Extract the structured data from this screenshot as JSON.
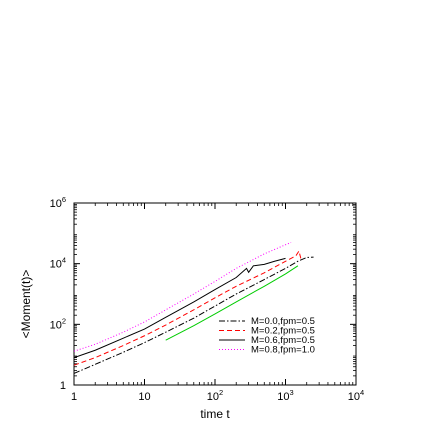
{
  "chart_data": {
    "type": "line",
    "title": "",
    "xlabel": "time t",
    "ylabel": "<Moment(t)>",
    "x_scale": "log",
    "y_scale": "log",
    "xlim": [
      1,
      10000
    ],
    "ylim": [
      1,
      1000000
    ],
    "x_ticks": [
      {
        "value": 1,
        "base": "1",
        "exp": ""
      },
      {
        "value": 10,
        "base": "10",
        "exp": ""
      },
      {
        "value": 100,
        "base": "10",
        "exp": "2"
      },
      {
        "value": 1000,
        "base": "10",
        "exp": "3"
      },
      {
        "value": 10000,
        "base": "10",
        "exp": "4"
      }
    ],
    "y_ticks": [
      {
        "value": 1,
        "base": "1",
        "exp": ""
      },
      {
        "value": 100,
        "base": "10",
        "exp": "2"
      },
      {
        "value": 10000,
        "base": "10",
        "exp": "4"
      },
      {
        "value": 1000000,
        "base": "10",
        "exp": "6"
      }
    ],
    "legend_position": "bottom-right",
    "grid": false,
    "series": [
      {
        "name": "M=0.0,fpm=0.5",
        "color": "#000000",
        "dash": "dashdot",
        "points": [
          [
            1,
            2.4
          ],
          [
            2,
            4.8
          ],
          [
            5,
            12
          ],
          [
            10,
            25
          ],
          [
            20,
            55
          ],
          [
            50,
            160
          ],
          [
            100,
            400
          ],
          [
            200,
            1000
          ],
          [
            500,
            3000
          ],
          [
            1000,
            7000
          ],
          [
            1500,
            12000
          ],
          [
            2000,
            16000
          ],
          [
            2500,
            16500
          ]
        ]
      },
      {
        "name": "M=0.2,fpm=0.5",
        "color": "#ff0000",
        "dash": "dashed",
        "points": [
          [
            1,
            4.5
          ],
          [
            2,
            8
          ],
          [
            5,
            20
          ],
          [
            10,
            42
          ],
          [
            20,
            95
          ],
          [
            50,
            300
          ],
          [
            100,
            750
          ],
          [
            200,
            1800
          ],
          [
            500,
            5000
          ],
          [
            1000,
            12000
          ],
          [
            1400,
            18000
          ],
          [
            1550,
            26000
          ],
          [
            1650,
            15000
          ]
        ]
      },
      {
        "name": "M=0.6,fpm=0.5",
        "color": "#000000",
        "dash": "solid",
        "points": [
          [
            1,
            8
          ],
          [
            2,
            14
          ],
          [
            5,
            35
          ],
          [
            10,
            70
          ],
          [
            20,
            170
          ],
          [
            50,
            550
          ],
          [
            100,
            1400
          ],
          [
            200,
            3500
          ],
          [
            280,
            7000
          ],
          [
            300,
            5200
          ],
          [
            350,
            8500
          ],
          [
            500,
            9500
          ],
          [
            700,
            12000
          ],
          [
            1000,
            15000
          ]
        ]
      },
      {
        "name": "M=0.8,fpm=1.0",
        "color": "#ff00ff",
        "dash": "dotted",
        "points": [
          [
            1,
            13
          ],
          [
            2,
            22
          ],
          [
            5,
            55
          ],
          [
            10,
            120
          ],
          [
            20,
            300
          ],
          [
            50,
            1000
          ],
          [
            100,
            2600
          ],
          [
            200,
            7000
          ],
          [
            500,
            21000
          ],
          [
            1000,
            42000
          ],
          [
            1200,
            50000
          ]
        ]
      },
      {
        "name": "",
        "color": "#00cc00",
        "dash": "solid",
        "points": [
          [
            20,
            30
          ],
          [
            50,
            90
          ],
          [
            100,
            220
          ],
          [
            200,
            550
          ],
          [
            500,
            1800
          ],
          [
            1000,
            4600
          ],
          [
            1500,
            8500
          ]
        ]
      }
    ]
  }
}
